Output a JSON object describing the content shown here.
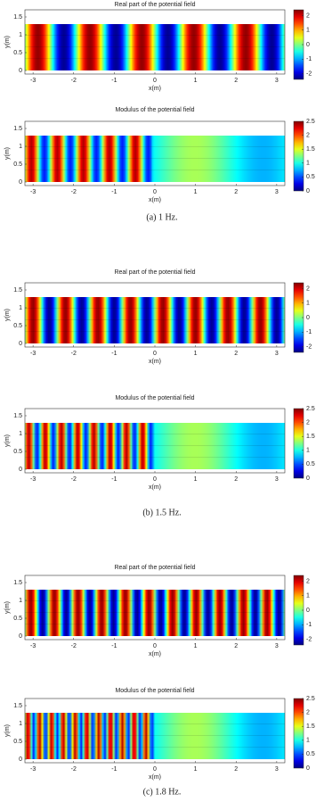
{
  "chart_data": [
    {
      "type": "contour",
      "title": "Real part of the potential field",
      "xlabel": "x(m)",
      "ylabel": "y(m)",
      "xlim": [
        -3.2,
        3.2
      ],
      "ylim": [
        -0.1,
        1.7
      ],
      "xticks": [
        -3,
        -2,
        -1,
        0,
        1,
        2,
        3
      ],
      "yticks": [
        0,
        0.5,
        1,
        1.5
      ],
      "clim": [
        -2.4,
        2.4
      ],
      "cticks": [
        -2,
        -1,
        0,
        1,
        2
      ]
    },
    {
      "type": "contour",
      "title": "Modulus of the potential field",
      "xlabel": "x(m)",
      "ylabel": "y(m)",
      "xlim": [
        -3.2,
        3.2
      ],
      "ylim": [
        -0.1,
        1.7
      ],
      "xticks": [
        -3,
        -2,
        -1,
        0,
        1,
        2,
        3
      ],
      "yticks": [
        0,
        0.5,
        1,
        1.5
      ],
      "clim": [
        0,
        2.5
      ],
      "cticks": [
        0,
        0.5,
        1,
        1.5,
        2,
        2.5
      ]
    },
    {
      "type": "contour",
      "title": "Real part of the potential field",
      "xlabel": "x(m)",
      "ylabel": "y(m)",
      "xlim": [
        -3.2,
        3.2
      ],
      "ylim": [
        -0.1,
        1.7
      ],
      "xticks": [
        -3,
        -2,
        -1,
        0,
        1,
        2,
        3
      ],
      "yticks": [
        0,
        0.5,
        1,
        1.5
      ],
      "clim": [
        -2.4,
        2.4
      ],
      "cticks": [
        -2,
        -1,
        0,
        1,
        2
      ]
    },
    {
      "type": "contour",
      "title": "Modulus of the potential field",
      "xlabel": "x(m)",
      "ylabel": "y(m)",
      "xlim": [
        -3.2,
        3.2
      ],
      "ylim": [
        -0.1,
        1.7
      ],
      "xticks": [
        -3,
        -2,
        -1,
        0,
        1,
        2,
        3
      ],
      "yticks": [
        0,
        0.5,
        1,
        1.5
      ],
      "clim": [
        0,
        2.5
      ],
      "cticks": [
        0,
        0.5,
        1,
        1.5,
        2,
        2.5
      ]
    },
    {
      "type": "contour",
      "title": "Real part of the potential field",
      "xlabel": "x(m)",
      "ylabel": "y(m)",
      "xlim": [
        -3.2,
        3.2
      ],
      "ylim": [
        -0.1,
        1.7
      ],
      "xticks": [
        -3,
        -2,
        -1,
        0,
        1,
        2,
        3
      ],
      "yticks": [
        0,
        0.5,
        1,
        1.5
      ],
      "clim": [
        -2.4,
        2.4
      ],
      "cticks": [
        -2,
        -1,
        0,
        1,
        2
      ]
    },
    {
      "type": "contour",
      "title": "Modulus of the potential field",
      "xlabel": "x(m)",
      "ylabel": "y(m)",
      "xlim": [
        -3.2,
        3.2
      ],
      "ylim": [
        -0.1,
        1.7
      ],
      "xticks": [
        -3,
        -2,
        -1,
        0,
        1,
        2,
        3
      ],
      "yticks": [
        0,
        0.5,
        1,
        1.5
      ],
      "clim": [
        0,
        2.5
      ],
      "cticks": [
        0,
        0.5,
        1,
        1.5,
        2,
        2.5
      ]
    }
  ],
  "captions": [
    "(a) 1 Hz.",
    "(b) 1.5 Hz.",
    "(c) 1.8 Hz."
  ]
}
